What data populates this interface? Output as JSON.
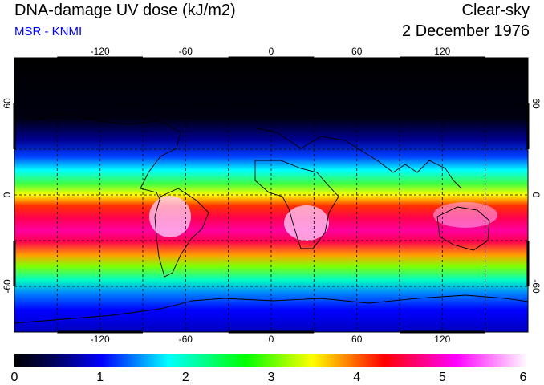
{
  "header": {
    "title": "DNA-damage UV dose (kJ/m2)",
    "subtitle": "MSR - KNMI",
    "condition": "Clear-sky",
    "date": "2 December 1976"
  },
  "map": {
    "projection": "equirectangular",
    "lon_range": [
      -180,
      180
    ],
    "lat_range": [
      -90,
      90
    ],
    "lon_ticks": [
      "-120",
      "-60",
      "0",
      "60",
      "120"
    ],
    "lat_ticks_left": [
      "60",
      "0",
      "-60"
    ],
    "lat_ticks_right": [
      "60",
      "0",
      "-60"
    ],
    "grid_lines": "dashed, 30 degrees",
    "colors": {
      "coastline": "#000000",
      "grid": "#000000",
      "frame": "#000000"
    }
  },
  "colorbar": {
    "min": 0,
    "max": 6,
    "labels": [
      "0",
      "1",
      "2",
      "3",
      "4",
      "5",
      "6"
    ],
    "colormap": [
      "#000000",
      "#000060",
      "#0000ff",
      "#00ffff",
      "#00ff00",
      "#ffff00",
      "#ff0000",
      "#ff00ff",
      "#ffffff"
    ]
  }
}
